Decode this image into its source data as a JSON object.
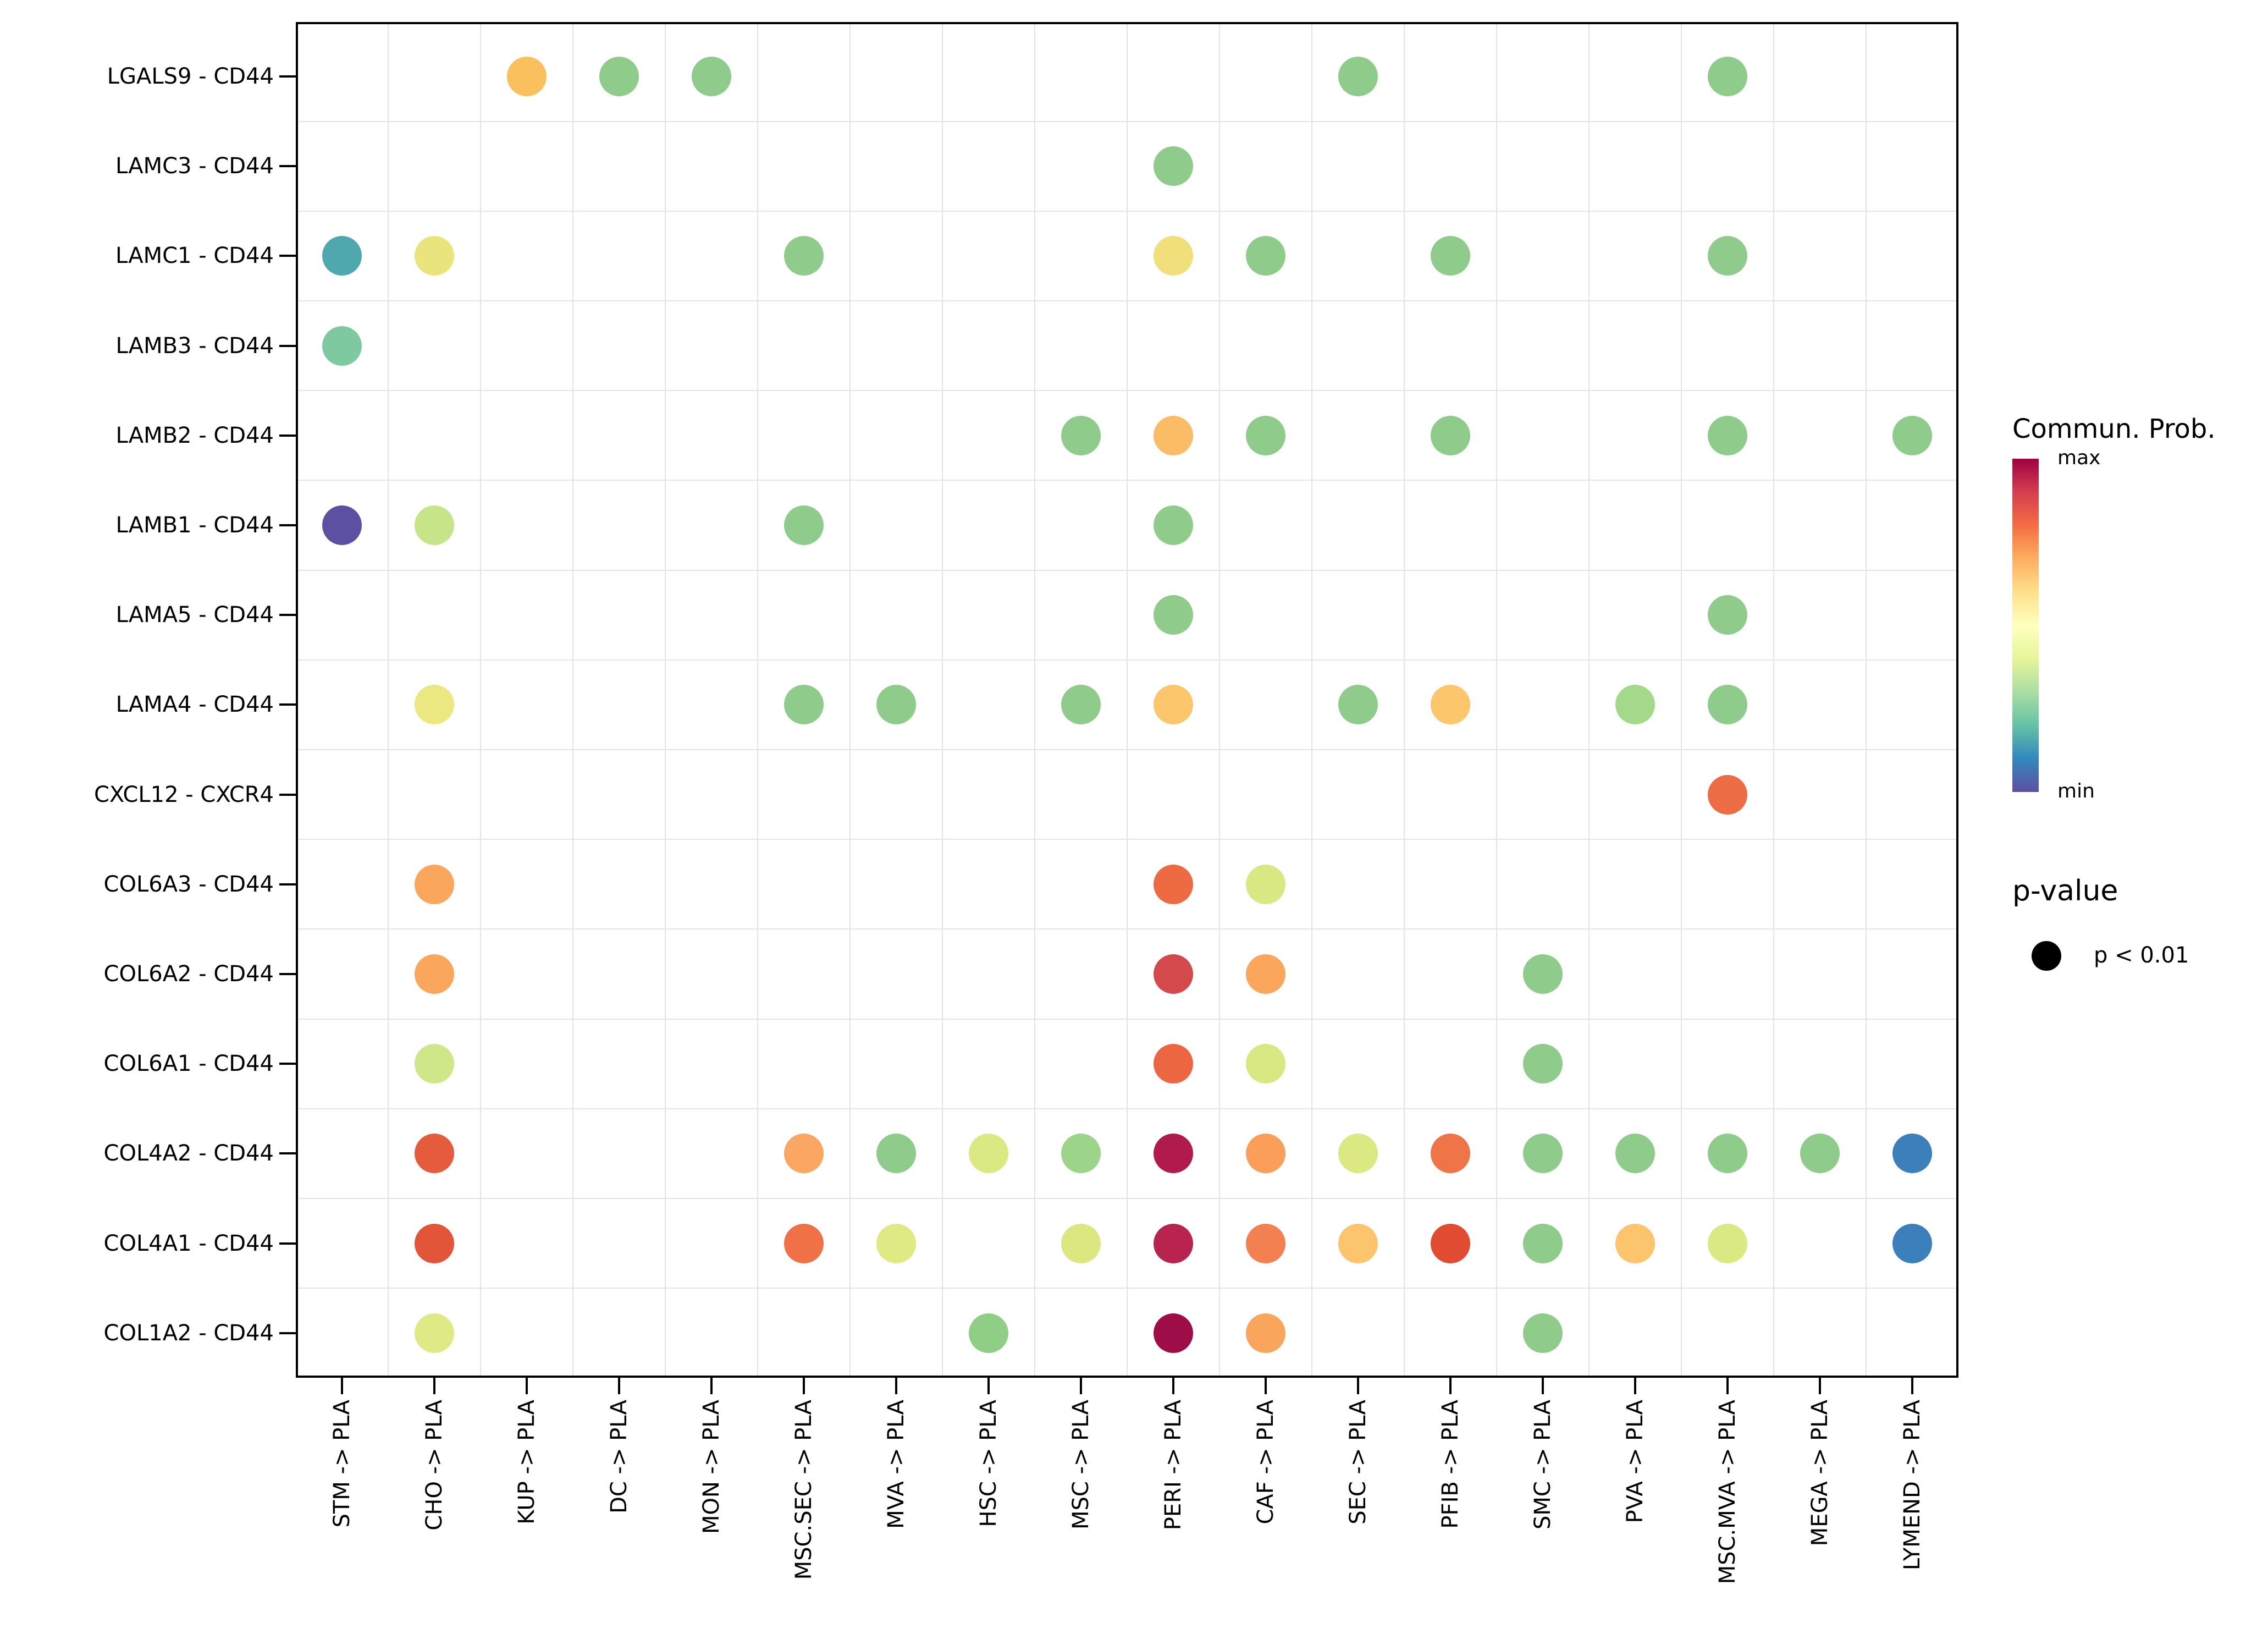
{
  "chart_data": {
    "type": "scatter",
    "subtype": "dot-plot-ligand-receptor",
    "title": "",
    "xlabel": "",
    "ylabel": "",
    "grid": "boundaries",
    "rows": [
      "LGALS9 - CD44",
      "LAMC3 - CD44",
      "LAMC1 - CD44",
      "LAMB3 - CD44",
      "LAMB2 - CD44",
      "LAMB1 - CD44",
      "LAMA5 - CD44",
      "LAMA4 - CD44",
      "CXCL12 - CXCR4",
      "COL6A3 - CD44",
      "COL6A2 - CD44",
      "COL6A1 - CD44",
      "COL4A2 - CD44",
      "COL4A1 - CD44",
      "COL1A2 - CD44"
    ],
    "columns": [
      "STM -> PLA",
      "CHO -> PLA",
      "KUP -> PLA",
      "DC -> PLA",
      "MON -> PLA",
      "MSC.SEC -> PLA",
      "MVA -> PLA",
      "HSC -> PLA",
      "MSC -> PLA",
      "PERI -> PLA",
      "CAF -> PLA",
      "SEC -> PLA",
      "PFIB -> PLA",
      "SMC -> PLA",
      "PVA -> PLA",
      "MSC.MVA -> PLA",
      "MEGA -> PLA",
      "LYMEND -> PLA"
    ],
    "points": [
      {
        "r": 0,
        "c": 2,
        "color": "#FAC05E"
      },
      {
        "r": 0,
        "c": 3,
        "color": "#8FCB8B"
      },
      {
        "r": 0,
        "c": 4,
        "color": "#8FCB8B"
      },
      {
        "r": 0,
        "c": 11,
        "color": "#8FCB8B"
      },
      {
        "r": 0,
        "c": 15,
        "color": "#8FCB8B"
      },
      {
        "r": 1,
        "c": 9,
        "color": "#8FCB8B"
      },
      {
        "r": 2,
        "c": 0,
        "color": "#4FA8AE"
      },
      {
        "r": 2,
        "c": 1,
        "color": "#E9E47C"
      },
      {
        "r": 2,
        "c": 5,
        "color": "#8FCB8B"
      },
      {
        "r": 2,
        "c": 9,
        "color": "#F0DF7B"
      },
      {
        "r": 2,
        "c": 10,
        "color": "#8FCB8B"
      },
      {
        "r": 2,
        "c": 12,
        "color": "#8FCB8B"
      },
      {
        "r": 2,
        "c": 15,
        "color": "#8FCB8B"
      },
      {
        "r": 3,
        "c": 0,
        "color": "#7FC9A0"
      },
      {
        "r": 4,
        "c": 8,
        "color": "#8FCB8B"
      },
      {
        "r": 4,
        "c": 9,
        "color": "#FBBC68"
      },
      {
        "r": 4,
        "c": 10,
        "color": "#8FCB8B"
      },
      {
        "r": 4,
        "c": 12,
        "color": "#8FCB8B"
      },
      {
        "r": 4,
        "c": 15,
        "color": "#8FCB8B"
      },
      {
        "r": 4,
        "c": 17,
        "color": "#8FCB8B"
      },
      {
        "r": 5,
        "c": 0,
        "color": "#5C50A2"
      },
      {
        "r": 5,
        "c": 1,
        "color": "#C7E588"
      },
      {
        "r": 5,
        "c": 5,
        "color": "#8FCB8B"
      },
      {
        "r": 5,
        "c": 9,
        "color": "#8FCB8B"
      },
      {
        "r": 6,
        "c": 9,
        "color": "#8FCB8B"
      },
      {
        "r": 6,
        "c": 15,
        "color": "#8FCB8B"
      },
      {
        "r": 7,
        "c": 1,
        "color": "#EBE881"
      },
      {
        "r": 7,
        "c": 5,
        "color": "#8FCB8B"
      },
      {
        "r": 7,
        "c": 6,
        "color": "#8FCB8B"
      },
      {
        "r": 7,
        "c": 8,
        "color": "#8FCB8B"
      },
      {
        "r": 7,
        "c": 9,
        "color": "#FBC66C"
      },
      {
        "r": 7,
        "c": 11,
        "color": "#8FCB8B"
      },
      {
        "r": 7,
        "c": 12,
        "color": "#FBC66C"
      },
      {
        "r": 7,
        "c": 14,
        "color": "#A5D98A"
      },
      {
        "r": 7,
        "c": 15,
        "color": "#8FCB8B"
      },
      {
        "r": 8,
        "c": 15,
        "color": "#EE6C43"
      },
      {
        "r": 9,
        "c": 1,
        "color": "#FAA65C"
      },
      {
        "r": 9,
        "c": 9,
        "color": "#EE6A42"
      },
      {
        "r": 9,
        "c": 10,
        "color": "#D9E883"
      },
      {
        "r": 10,
        "c": 1,
        "color": "#FAA65C"
      },
      {
        "r": 10,
        "c": 9,
        "color": "#D4494C"
      },
      {
        "r": 10,
        "c": 10,
        "color": "#FAA65C"
      },
      {
        "r": 10,
        "c": 13,
        "color": "#8FCB8B"
      },
      {
        "r": 11,
        "c": 1,
        "color": "#CFE789"
      },
      {
        "r": 11,
        "c": 9,
        "color": "#ED6642"
      },
      {
        "r": 11,
        "c": 10,
        "color": "#D9E883"
      },
      {
        "r": 11,
        "c": 13,
        "color": "#8FCB8B"
      },
      {
        "r": 12,
        "c": 1,
        "color": "#E55C3C"
      },
      {
        "r": 12,
        "c": 5,
        "color": "#FBA763"
      },
      {
        "r": 12,
        "c": 6,
        "color": "#8FCB8B"
      },
      {
        "r": 12,
        "c": 7,
        "color": "#DCE982"
      },
      {
        "r": 12,
        "c": 8,
        "color": "#9CD489"
      },
      {
        "r": 12,
        "c": 9,
        "color": "#B11A4C"
      },
      {
        "r": 12,
        "c": 10,
        "color": "#FB9E59"
      },
      {
        "r": 12,
        "c": 11,
        "color": "#DCE982"
      },
      {
        "r": 12,
        "c": 12,
        "color": "#EF7549"
      },
      {
        "r": 12,
        "c": 13,
        "color": "#8FCB8B"
      },
      {
        "r": 12,
        "c": 14,
        "color": "#8FCB8B"
      },
      {
        "r": 12,
        "c": 15,
        "color": "#8FCB8B"
      },
      {
        "r": 12,
        "c": 16,
        "color": "#8FCB8B"
      },
      {
        "r": 12,
        "c": 17,
        "color": "#3B80BB"
      },
      {
        "r": 13,
        "c": 1,
        "color": "#E25539"
      },
      {
        "r": 13,
        "c": 5,
        "color": "#F07048"
      },
      {
        "r": 13,
        "c": 6,
        "color": "#DFEA85"
      },
      {
        "r": 13,
        "c": 8,
        "color": "#DCE87F"
      },
      {
        "r": 13,
        "c": 9,
        "color": "#B92350"
      },
      {
        "r": 13,
        "c": 10,
        "color": "#F28051"
      },
      {
        "r": 13,
        "c": 11,
        "color": "#FBC46D"
      },
      {
        "r": 13,
        "c": 12,
        "color": "#E04B31"
      },
      {
        "r": 13,
        "c": 13,
        "color": "#8FCB8B"
      },
      {
        "r": 13,
        "c": 14,
        "color": "#FBC46D"
      },
      {
        "r": 13,
        "c": 15,
        "color": "#DCE983"
      },
      {
        "r": 13,
        "c": 17,
        "color": "#3B80BB"
      },
      {
        "r": 14,
        "c": 1,
        "color": "#DFEA87"
      },
      {
        "r": 14,
        "c": 7,
        "color": "#90CE85"
      },
      {
        "r": 14,
        "c": 9,
        "color": "#9E0D47"
      },
      {
        "r": 14,
        "c": 10,
        "color": "#FAA55C"
      },
      {
        "r": 14,
        "c": 13,
        "color": "#8FCB8B"
      }
    ],
    "legend": {
      "color_title": "Commun. Prob.",
      "color_max_label": "max",
      "color_min_label": "min",
      "gradient_top_to_bottom": [
        "#9E0142",
        "#D53E4F",
        "#F46D43",
        "#FDAE61",
        "#FEE08B",
        "#FFFFBF",
        "#E6F598",
        "#ABDDA4",
        "#66C2A5",
        "#3288BD",
        "#5E4FA2"
      ],
      "size_title": "p-value",
      "size_dot_color": "#000000",
      "size_label": "p < 0.01"
    }
  }
}
